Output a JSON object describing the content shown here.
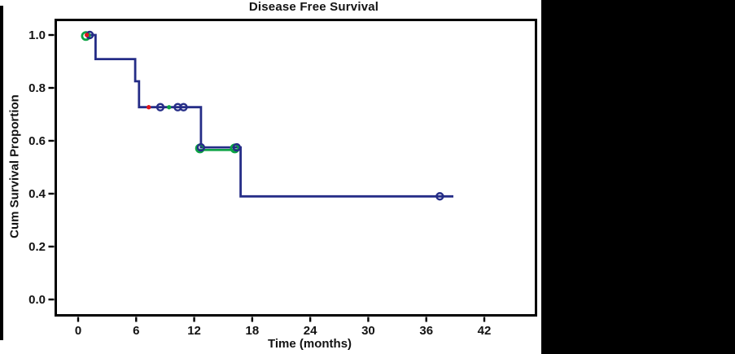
{
  "title": "Disease Free Survival",
  "colors": {
    "curve_navy": "#252d87",
    "overlay_green": "#0ca344",
    "event_red": "#e0151b",
    "frame_black": "#000000",
    "background": "#ffffff",
    "filler_black": "#000000"
  },
  "axes": {
    "x": {
      "label": "Time (months)",
      "ticks": [
        {
          "value": 0,
          "label": "0"
        },
        {
          "value": 6,
          "label": "6"
        },
        {
          "value": 12,
          "label": "12"
        },
        {
          "value": 18,
          "label": "18"
        },
        {
          "value": 24,
          "label": "24"
        },
        {
          "value": 30,
          "label": "30"
        },
        {
          "value": 36,
          "label": "36"
        },
        {
          "value": 42,
          "label": "42"
        }
      ]
    },
    "y": {
      "label": "Cum Survival Proportion",
      "ticks": [
        {
          "value": 0.0,
          "label": "0.0"
        },
        {
          "value": 0.2,
          "label": "0.2"
        },
        {
          "value": 0.4,
          "label": "0.4"
        },
        {
          "value": 0.6,
          "label": "0.6"
        },
        {
          "value": 0.8,
          "label": "0.8"
        },
        {
          "value": 1.0,
          "label": "1.0"
        }
      ]
    }
  },
  "chart_data": {
    "type": "line",
    "subtype": "kaplan-meier-step",
    "title": "Disease Free Survival",
    "xlabel": "Time (months)",
    "ylabel": "Cum Survival Proportion",
    "xlim": [
      -2.4,
      47.5
    ],
    "ylim": [
      -0.06,
      1.06
    ],
    "grid": false,
    "legend": false,
    "survival_levels": [
      1.0,
      0.909,
      0.825,
      0.727,
      0.575,
      0.39
    ],
    "series": [
      {
        "name": "disease-free-survival-curve",
        "color": "#252d87",
        "steps": [
          [
            0.8,
            1.0
          ],
          [
            1.8,
            1.0
          ],
          [
            1.8,
            0.909
          ],
          [
            5.9,
            0.909
          ],
          [
            5.9,
            0.825
          ],
          [
            6.3,
            0.825
          ],
          [
            6.3,
            0.727
          ],
          [
            12.7,
            0.727
          ],
          [
            12.7,
            0.575
          ],
          [
            16.8,
            0.575
          ],
          [
            16.8,
            0.39
          ],
          [
            38.8,
            0.39
          ]
        ]
      }
    ],
    "green_overlay_segment": {
      "s": 0.575,
      "t_from": 12.55,
      "t_to": 16.6
    },
    "markers": {
      "censored_navy": [
        {
          "t": 1.2,
          "s": 1.0
        },
        {
          "t": 8.5,
          "s": 0.727
        },
        {
          "t": 10.3,
          "s": 0.727
        },
        {
          "t": 10.9,
          "s": 0.727
        },
        {
          "t": 12.7,
          "s": 0.575
        },
        {
          "t": 16.4,
          "s": 0.575
        },
        {
          "t": 37.4,
          "s": 0.39
        }
      ],
      "censored_green": [
        {
          "t": 0.8,
          "s": 1.0
        },
        {
          "t": 12.6,
          "s": 0.575
        },
        {
          "t": 16.2,
          "s": 0.575
        }
      ],
      "event_red": [
        {
          "t": 0.9,
          "s": 1.0
        },
        {
          "t": 7.3,
          "s": 0.727
        }
      ],
      "event_green": [
        {
          "t": 9.4,
          "s": 0.727
        }
      ]
    }
  }
}
